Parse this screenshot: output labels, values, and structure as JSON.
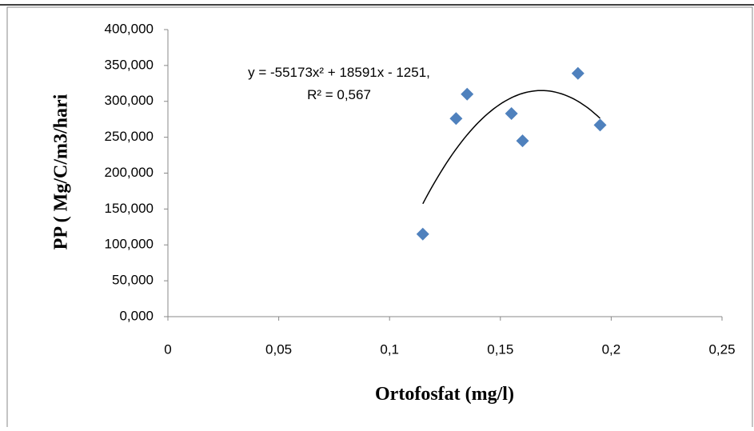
{
  "chart_data": {
    "type": "scatter",
    "x": [
      0.115,
      0.13,
      0.135,
      0.155,
      0.16,
      0.185,
      0.195
    ],
    "values": [
      115,
      276,
      310,
      283,
      245,
      339,
      267
    ],
    "color": "#4f81bd",
    "x_label": "Ortofosfat (mg/l)",
    "y_label": "PP ( Mg/C/m3/hari",
    "xlim": [
      0,
      0.25
    ],
    "xticks": [
      0,
      {
        "value": 0.05,
        "label": "0,05"
      },
      {
        "value": 0.1,
        "label": "0,1"
      },
      {
        "value": 0.15,
        "label": "0,15"
      },
      {
        "value": 0.2,
        "label": "0,2"
      },
      {
        "value": 0.25,
        "label": "0,25"
      }
    ],
    "ylim": [
      0,
      400
    ],
    "yticks": [
      {
        "value": 0,
        "label": "0,000"
      },
      {
        "value": 50,
        "label": "50,000"
      },
      {
        "value": 100,
        "label": "100,000"
      },
      {
        "value": 150,
        "label": "150,000"
      },
      {
        "value": 200,
        "label": "200,000"
      },
      {
        "value": 250,
        "label": "250,000"
      },
      {
        "value": 300,
        "label": "300,000"
      },
      {
        "value": 350,
        "label": "350,000"
      },
      {
        "value": 400,
        "label": "400,000"
      }
    ],
    "grid": false,
    "trendline": {
      "equation": "y = -55173x² + 18591x - 1251,",
      "r_squared": "R² = 0,567",
      "coefficients": [
        -55173,
        18591,
        -1251
      ]
    }
  }
}
